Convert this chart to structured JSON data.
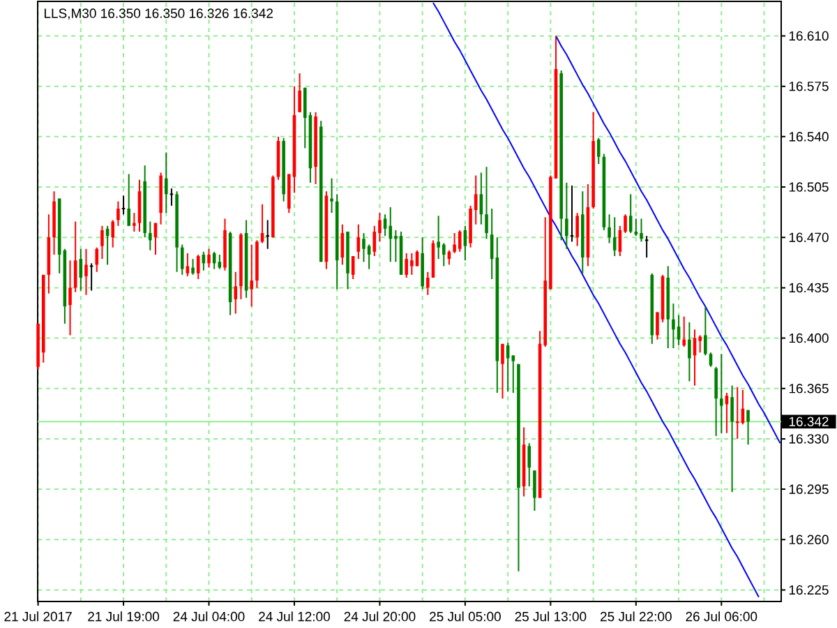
{
  "chart_data": {
    "type": "candlestick",
    "title": "LLS,M30 16.350 16.350 16.326 16.342",
    "categories": [
      "21 Jul 2017",
      null,
      null,
      null,
      null,
      null,
      null,
      null,
      null,
      null,
      null,
      null,
      null,
      null,
      null,
      null,
      "21 Jul 19:00",
      null,
      null,
      null,
      null,
      null,
      null,
      null,
      null,
      null,
      null,
      null,
      null,
      null,
      null,
      null,
      "24 Jul 04:00",
      null,
      null,
      null,
      null,
      null,
      null,
      null,
      null,
      null,
      null,
      null,
      null,
      null,
      null,
      null,
      "24 Jul 12:00",
      null,
      null,
      null,
      null,
      null,
      null,
      null,
      null,
      null,
      null,
      null,
      null,
      null,
      null,
      null,
      "24 Jul 20:00",
      null,
      null,
      null,
      null,
      null,
      null,
      null,
      null,
      null,
      null,
      null,
      null,
      null,
      null,
      null,
      "25 Jul 05:00",
      null,
      null,
      null,
      null,
      null,
      null,
      null,
      null,
      null,
      null,
      null,
      null,
      null,
      null,
      null,
      "25 Jul 13:00",
      null,
      null,
      null,
      null,
      null,
      null,
      null,
      null,
      null,
      null,
      null,
      null,
      null,
      null,
      null,
      "25 Jul 22:00",
      null,
      null,
      null,
      null,
      null,
      null,
      null,
      null,
      null,
      null,
      null,
      null,
      null,
      null,
      null,
      "26 Jul 06:00",
      null,
      null,
      null,
      null,
      null,
      null,
      null,
      null,
      null,
      null,
      null
    ],
    "ohlc": [
      [
        16.38,
        16.41,
        16.378,
        16.41
      ],
      [
        16.39,
        16.444,
        16.383,
        16.444
      ],
      [
        16.444,
        16.486,
        16.431,
        16.47
      ],
      [
        16.47,
        16.502,
        16.458,
        16.495
      ],
      [
        16.497,
        16.497,
        16.445,
        16.458
      ],
      [
        16.461,
        16.462,
        16.41,
        16.422
      ],
      [
        16.423,
        16.454,
        16.402,
        16.435
      ],
      [
        16.435,
        16.481,
        16.432,
        16.454
      ],
      [
        16.455,
        16.462,
        16.433,
        16.442
      ],
      [
        16.443,
        16.462,
        16.43,
        16.451
      ],
      [
        16.45,
        16.452,
        16.433,
        16.45
      ],
      [
        16.451,
        16.463,
        16.446,
        16.462
      ],
      [
        16.464,
        16.478,
        16.455,
        16.475
      ],
      [
        16.476,
        16.478,
        16.451,
        16.471
      ],
      [
        16.47,
        16.482,
        16.463,
        16.481
      ],
      [
        16.482,
        16.495,
        16.478,
        16.49
      ],
      [
        16.49,
        16.499,
        16.486,
        16.49
      ],
      [
        16.49,
        16.514,
        16.478,
        16.478
      ],
      [
        16.478,
        16.487,
        16.474,
        16.48
      ],
      [
        16.48,
        16.51,
        16.474,
        16.502
      ],
      [
        16.509,
        16.52,
        16.47,
        16.473
      ],
      [
        16.473,
        16.481,
        16.461,
        16.468
      ],
      [
        16.47,
        16.48,
        16.458,
        16.48
      ],
      [
        16.487,
        16.515,
        16.479,
        16.513
      ],
      [
        16.511,
        16.529,
        16.487,
        16.5
      ],
      [
        16.5,
        16.504,
        16.492,
        16.5
      ],
      [
        16.5,
        16.502,
        16.446,
        16.463
      ],
      [
        16.463,
        16.465,
        16.444,
        16.448
      ],
      [
        16.445,
        16.459,
        16.443,
        16.45
      ],
      [
        16.449,
        16.455,
        16.444,
        16.445
      ],
      [
        16.445,
        16.458,
        16.441,
        16.457
      ],
      [
        16.458,
        16.46,
        16.447,
        16.452
      ],
      [
        16.452,
        16.462,
        16.449,
        16.458
      ],
      [
        16.459,
        16.46,
        16.448,
        16.452
      ],
      [
        16.453,
        16.458,
        16.448,
        16.449
      ],
      [
        16.449,
        16.483,
        16.447,
        16.475
      ],
      [
        16.473,
        16.474,
        16.416,
        16.425
      ],
      [
        16.427,
        16.446,
        16.417,
        16.436
      ],
      [
        16.436,
        16.473,
        16.427,
        16.472
      ],
      [
        16.473,
        16.482,
        16.428,
        16.433
      ],
      [
        16.434,
        16.465,
        16.422,
        16.44
      ],
      [
        16.44,
        16.468,
        16.435,
        16.467
      ],
      [
        16.467,
        16.493,
        16.466,
        16.473
      ],
      [
        16.471,
        16.482,
        16.462,
        16.471
      ],
      [
        16.47,
        16.513,
        16.47,
        16.512
      ],
      [
        16.512,
        16.54,
        16.51,
        16.537
      ],
      [
        16.537,
        16.539,
        16.495,
        16.5
      ],
      [
        16.49,
        16.514,
        16.487,
        16.514
      ],
      [
        16.512,
        16.575,
        16.501,
        16.555
      ],
      [
        16.557,
        16.584,
        16.557,
        16.572
      ],
      [
        16.574,
        16.574,
        16.532,
        16.553
      ],
      [
        16.555,
        16.557,
        16.508,
        16.518
      ],
      [
        16.519,
        16.557,
        16.507,
        16.554
      ],
      [
        16.547,
        16.551,
        16.453,
        16.453
      ],
      [
        16.453,
        16.502,
        16.448,
        16.499
      ],
      [
        16.497,
        16.511,
        16.487,
        16.495
      ],
      [
        16.495,
        16.5,
        16.434,
        16.454
      ],
      [
        16.456,
        16.479,
        16.451,
        16.473
      ],
      [
        16.474,
        16.474,
        16.434,
        16.445
      ],
      [
        16.444,
        16.457,
        16.441,
        16.457
      ],
      [
        16.46,
        16.479,
        16.455,
        16.47
      ],
      [
        16.469,
        16.473,
        16.453,
        16.462
      ],
      [
        16.464,
        16.465,
        16.448,
        16.458
      ],
      [
        16.46,
        16.478,
        16.457,
        16.474
      ],
      [
        16.473,
        16.487,
        16.467,
        16.482
      ],
      [
        16.483,
        16.486,
        16.471,
        16.476
      ],
      [
        16.478,
        16.491,
        16.453,
        16.469
      ],
      [
        16.471,
        16.475,
        16.453,
        16.469
      ],
      [
        16.471,
        16.474,
        16.444,
        16.444
      ],
      [
        16.444,
        16.459,
        16.442,
        16.455
      ],
      [
        16.45,
        16.459,
        16.444,
        16.454
      ],
      [
        16.45,
        16.461,
        16.45,
        16.46
      ],
      [
        16.459,
        16.47,
        16.434,
        16.436
      ],
      [
        16.435,
        16.446,
        16.43,
        16.442
      ],
      [
        16.442,
        16.468,
        16.442,
        16.466
      ],
      [
        16.467,
        16.485,
        16.455,
        16.463
      ],
      [
        16.465,
        16.466,
        16.45,
        16.458
      ],
      [
        16.455,
        16.461,
        16.451,
        16.46
      ],
      [
        16.46,
        16.473,
        16.459,
        16.465
      ],
      [
        16.462,
        16.475,
        16.46,
        16.474
      ],
      [
        16.475,
        16.478,
        16.454,
        16.464
      ],
      [
        16.466,
        16.492,
        16.463,
        16.49
      ],
      [
        16.489,
        16.513,
        16.479,
        16.5
      ],
      [
        16.5,
        16.515,
        16.479,
        16.486
      ],
      [
        16.486,
        16.519,
        16.469,
        16.473
      ],
      [
        16.472,
        16.49,
        16.441,
        16.455
      ],
      [
        16.456,
        16.47,
        16.362,
        16.384
      ],
      [
        16.382,
        16.396,
        16.358,
        16.396
      ],
      [
        16.395,
        16.397,
        16.363,
        16.386
      ],
      [
        16.388,
        16.388,
        16.362,
        16.384
      ],
      [
        16.382,
        16.382,
        16.238,
        16.296
      ],
      [
        16.297,
        16.338,
        16.29,
        16.326
      ],
      [
        16.325,
        16.327,
        16.297,
        16.31
      ],
      [
        16.308,
        16.308,
        16.28,
        16.289
      ],
      [
        16.289,
        16.405,
        16.289,
        16.396
      ],
      [
        16.395,
        16.484,
        16.394,
        16.44
      ],
      [
        16.434,
        16.513,
        16.434,
        16.512
      ],
      [
        16.511,
        16.61,
        16.511,
        16.587
      ],
      [
        16.584,
        16.586,
        16.468,
        16.483
      ],
      [
        16.483,
        16.508,
        16.462,
        16.471
      ],
      [
        16.471,
        16.506,
        16.467,
        16.471
      ],
      [
        16.47,
        16.487,
        16.464,
        16.485
      ],
      [
        16.486,
        16.502,
        16.445,
        16.456
      ],
      [
        16.456,
        16.507,
        16.45,
        16.491
      ],
      [
        16.491,
        16.557,
        16.49,
        16.537
      ],
      [
        16.538,
        16.539,
        16.521,
        16.526
      ],
      [
        16.526,
        16.528,
        16.475,
        16.477
      ],
      [
        16.477,
        16.486,
        16.466,
        16.47
      ],
      [
        16.47,
        16.484,
        16.457,
        16.461
      ],
      [
        16.46,
        16.478,
        16.457,
        16.475
      ],
      [
        16.474,
        16.486,
        16.473,
        16.485
      ],
      [
        16.485,
        16.5,
        16.473,
        16.474
      ],
      [
        16.474,
        16.483,
        16.471,
        16.472
      ],
      [
        16.473,
        16.483,
        16.467,
        16.469
      ],
      [
        16.468,
        16.471,
        16.456,
        16.468
      ],
      [
        16.444,
        16.445,
        16.396,
        16.402
      ],
      [
        16.402,
        16.418,
        16.399,
        16.418
      ],
      [
        16.413,
        16.444,
        16.411,
        16.443
      ],
      [
        16.442,
        16.45,
        16.393,
        16.413
      ],
      [
        16.413,
        16.424,
        16.393,
        16.406
      ],
      [
        16.408,
        16.416,
        16.395,
        16.399
      ],
      [
        16.395,
        16.415,
        16.394,
        16.399
      ],
      [
        16.399,
        16.411,
        16.37,
        16.386
      ],
      [
        16.388,
        16.406,
        16.367,
        16.4
      ],
      [
        16.398,
        16.402,
        16.39,
        16.401
      ],
      [
        16.402,
        16.422,
        16.388,
        16.389
      ],
      [
        16.389,
        16.39,
        16.38,
        16.381
      ],
      [
        16.379,
        16.38,
        16.332,
        16.358
      ],
      [
        16.358,
        16.389,
        16.334,
        16.353
      ],
      [
        16.354,
        16.362,
        16.334,
        16.36
      ],
      [
        16.359,
        16.367,
        16.293,
        16.342
      ],
      [
        16.341,
        16.366,
        16.33,
        16.342
      ],
      [
        16.341,
        16.364,
        16.34,
        16.351
      ],
      [
        16.35,
        16.35,
        16.326,
        16.342
      ],
      null,
      null,
      null,
      null,
      null,
      null
    ],
    "colors": [
      "#ff0000",
      "#ff0000",
      "#ff0000",
      "#ff0000",
      "#008000",
      "#008000",
      "#ff0000",
      "#ff0000",
      "#008000",
      "#ff0000",
      "#000000",
      "#ff0000",
      "#ff0000",
      "#008000",
      "#ff0000",
      "#ff0000",
      "#000000",
      "#008000",
      "#ff0000",
      "#ff0000",
      "#008000",
      "#008000",
      "#ff0000",
      "#ff0000",
      "#008000",
      "#000000",
      "#008000",
      "#008000",
      "#ff0000",
      "#008000",
      "#ff0000",
      "#008000",
      "#ff0000",
      "#008000",
      "#008000",
      "#ff0000",
      "#008000",
      "#ff0000",
      "#ff0000",
      "#008000",
      "#ff0000",
      "#ff0000",
      "#ff0000",
      "#000000",
      "#ff0000",
      "#ff0000",
      "#008000",
      "#ff0000",
      "#ff0000",
      "#ff0000",
      "#008000",
      "#008000",
      "#ff0000",
      "#008000",
      "#ff0000",
      "#008000",
      "#008000",
      "#ff0000",
      "#008000",
      "#ff0000",
      "#ff0000",
      "#008000",
      "#008000",
      "#ff0000",
      "#ff0000",
      "#008000",
      "#008000",
      "#008000",
      "#008000",
      "#ff0000",
      "#ff0000",
      "#ff0000",
      "#008000",
      "#ff0000",
      "#ff0000",
      "#008000",
      "#008000",
      "#ff0000",
      "#ff0000",
      "#ff0000",
      "#008000",
      "#ff0000",
      "#ff0000",
      "#008000",
      "#008000",
      "#008000",
      "#008000",
      "#ff0000",
      "#008000",
      "#008000",
      "#008000",
      "#ff0000",
      "#008000",
      "#008000",
      "#ff0000",
      "#ff0000",
      "#ff0000",
      "#ff0000",
      "#008000",
      "#008000",
      "#000000",
      "#ff0000",
      "#008000",
      "#ff0000",
      "#ff0000",
      "#008000",
      "#008000",
      "#008000",
      "#008000",
      "#ff0000",
      "#ff0000",
      "#008000",
      "#008000",
      "#008000",
      "#000000",
      "#008000",
      "#ff0000",
      "#ff0000",
      "#008000",
      "#008000",
      "#008000",
      "#ff0000",
      "#008000",
      "#ff0000",
      "#ff0000",
      "#008000",
      "#008000",
      "#008000",
      "#008000",
      "#ff0000",
      "#008000",
      "#ff0000",
      "#ff0000",
      "#008000",
      null,
      null,
      null,
      null,
      null,
      null
    ],
    "ylim": [
      16.217,
      16.634
    ],
    "yticks": [
      16.225,
      {
        "value": 16.26,
        "label": "16.260"
      },
      16.295,
      {
        "value": 16.33,
        "label": "16.330"
      },
      16.365,
      {
        "value": 16.4,
        "label": "16.400"
      },
      16.435,
      {
        "value": 16.47,
        "label": "16.470"
      },
      16.505,
      {
        "value": 16.54,
        "label": "16.540"
      },
      16.575,
      {
        "value": 16.61,
        "label": "16.610"
      }
    ],
    "grid": true,
    "series": [
      {
        "type": "line",
        "color": "#0000ff",
        "values": [
          null,
          null,
          null,
          null,
          null,
          null,
          null,
          null,
          null,
          null,
          null,
          null,
          null,
          null,
          null,
          null,
          null,
          null,
          null,
          null,
          null,
          null,
          null,
          null,
          null,
          null,
          null,
          null,
          null,
          null,
          null,
          null,
          null,
          null,
          null,
          null,
          null,
          null,
          null,
          null,
          null,
          null,
          null,
          null,
          null,
          null,
          null,
          null,
          null,
          null,
          null,
          null,
          null,
          null,
          null,
          null,
          null,
          null,
          null,
          null,
          null,
          null,
          null,
          null,
          null,
          null,
          null,
          null,
          null,
          null,
          null,
          null,
          null,
          null,
          16.633,
          16.627,
          16.62,
          16.613,
          16.606,
          16.6,
          16.593,
          16.586,
          16.579,
          16.572,
          16.566,
          16.559,
          16.552,
          16.545,
          16.539,
          16.532,
          16.525,
          16.518,
          16.512,
          16.505,
          16.498,
          16.491,
          16.484,
          16.478,
          16.471,
          16.464,
          16.457,
          16.451,
          16.444,
          16.437,
          16.43,
          16.424,
          16.417,
          16.41,
          16.403,
          16.396,
          16.39,
          16.383,
          16.376,
          16.369,
          16.363,
          16.356,
          16.349,
          16.342,
          16.336,
          16.329,
          16.322,
          16.315,
          16.308,
          16.302,
          16.295,
          16.288,
          16.281,
          16.275,
          16.268,
          16.261,
          16.254,
          16.248,
          16.241,
          16.234,
          16.227,
          16.22,
          null,
          null,
          null,
          null
        ]
      },
      {
        "type": "line",
        "color": "#0000ff",
        "values": [
          null,
          null,
          null,
          null,
          null,
          null,
          null,
          null,
          null,
          null,
          null,
          null,
          null,
          null,
          null,
          null,
          null,
          null,
          null,
          null,
          null,
          null,
          null,
          null,
          null,
          null,
          null,
          null,
          null,
          null,
          null,
          null,
          null,
          null,
          null,
          null,
          null,
          null,
          null,
          null,
          null,
          null,
          null,
          null,
          null,
          null,
          null,
          null,
          null,
          null,
          null,
          null,
          null,
          null,
          null,
          null,
          null,
          null,
          null,
          null,
          null,
          null,
          null,
          null,
          null,
          null,
          null,
          null,
          null,
          null,
          null,
          null,
          null,
          null,
          null,
          null,
          null,
          null,
          null,
          null,
          null,
          null,
          null,
          null,
          null,
          null,
          null,
          null,
          null,
          null,
          null,
          null,
          null,
          null,
          null,
          null,
          null,
          16.61,
          16.603,
          16.597,
          16.59,
          16.583,
          16.576,
          16.57,
          16.563,
          16.556,
          16.549,
          16.543,
          16.536,
          16.529,
          16.523,
          16.516,
          16.509,
          16.502,
          16.496,
          16.489,
          16.482,
          16.475,
          16.469,
          16.462,
          16.455,
          16.448,
          16.442,
          16.435,
          16.428,
          16.422,
          16.415,
          16.408,
          16.401,
          16.395,
          16.388,
          16.381,
          16.374,
          16.368,
          16.361,
          16.354,
          16.348,
          16.341,
          16.334,
          16.327
        ]
      }
    ],
    "ref_lines": [
      {
        "axis": "y",
        "value": 16.342,
        "label": "16.342",
        "color": "#90ee90"
      }
    ]
  }
}
